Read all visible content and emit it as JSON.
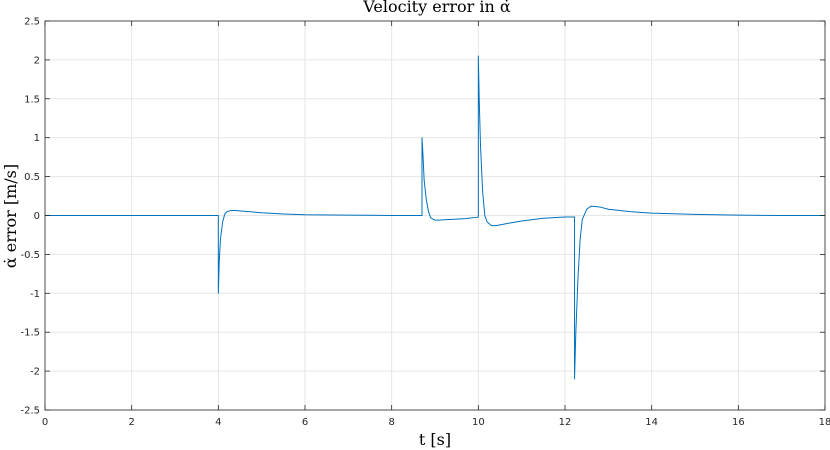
{
  "chart_data": {
    "type": "line",
    "title": "Velocity error in α̇",
    "xlabel": "t [s]",
    "ylabel": "α̇ error [m/s]",
    "xlim": [
      0,
      18
    ],
    "ylim": [
      -2.5,
      2.5
    ],
    "xticks": [
      0,
      2,
      4,
      6,
      8,
      10,
      12,
      14,
      16,
      18
    ],
    "yticks": [
      -2.5,
      -2,
      -1.5,
      -1,
      -0.5,
      0,
      0.5,
      1,
      1.5,
      2,
      2.5
    ],
    "xtick_labels": [
      "0",
      "2",
      "4",
      "6",
      "8",
      "10",
      "12",
      "14",
      "16",
      "18"
    ],
    "ytick_labels": [
      "-2.5",
      "-2",
      "-1.5",
      "-1",
      "-0.5",
      "0",
      "0.5",
      "1",
      "1.5",
      "2",
      "2.5"
    ],
    "grid": true,
    "box": true,
    "series": [
      {
        "color": "#0072BD",
        "x": [
          0,
          4.0,
          4.0,
          4.02,
          4.05,
          4.1,
          4.15,
          4.2,
          4.3,
          4.4,
          4.6,
          5.0,
          5.5,
          6.0,
          7.0,
          8.0,
          8.7,
          8.7,
          8.72,
          8.75,
          8.8,
          8.85,
          8.9,
          9.0,
          9.1,
          9.2,
          9.4,
          9.7,
          10.0,
          10.0,
          10.02,
          10.05,
          10.1,
          10.15,
          10.2,
          10.3,
          10.4,
          10.5,
          10.7,
          11.0,
          11.5,
          12.0,
          12.22,
          12.22,
          12.25,
          12.3,
          12.35,
          12.4,
          12.5,
          12.6,
          12.8,
          13.0,
          13.5,
          14.0,
          15.0,
          16.0,
          17.0,
          18.0
        ],
        "y": [
          0,
          0,
          -1.0,
          -0.6,
          -0.3,
          -0.08,
          0.02,
          0.05,
          0.065,
          0.065,
          0.055,
          0.035,
          0.02,
          0.01,
          0.005,
          0.0,
          0.0,
          1.0,
          0.8,
          0.45,
          0.2,
          0.05,
          -0.03,
          -0.06,
          -0.06,
          -0.055,
          -0.05,
          -0.04,
          -0.02,
          2.05,
          1.5,
          0.9,
          0.3,
          0.0,
          -0.08,
          -0.13,
          -0.13,
          -0.12,
          -0.1,
          -0.07,
          -0.035,
          -0.02,
          -0.02,
          -2.1,
          -1.5,
          -0.8,
          -0.3,
          -0.05,
          0.08,
          0.12,
          0.11,
          0.08,
          0.05,
          0.03,
          0.015,
          0.005,
          0.0,
          0.0
        ]
      }
    ]
  }
}
